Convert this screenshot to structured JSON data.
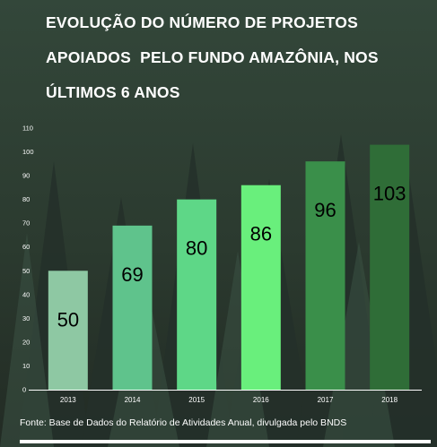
{
  "title_lines": [
    "EVOLUÇÃO DO NÚMERO DE PROJETOS",
    "APOIADOS  PELO FUNDO AMAZÔNIA, NOS",
    "ÚLTIMOS 6 ANOS"
  ],
  "source": "Fonte: Base de Dados do Relatório de Atividades Anual, divulgada pelo BNDS",
  "chart_data": {
    "type": "bar",
    "title": "EVOLUÇÃO DO NÚMERO DE PROJETOS APOIADOS  PELO FUNDO AMAZÔNIA, NOS ÚLTIMOS 6 ANOS",
    "xlabel": "",
    "ylabel": "",
    "categories": [
      "2013",
      "2014",
      "2015",
      "2016",
      "2017",
      "2018"
    ],
    "values": [
      50,
      69,
      80,
      86,
      96,
      103
    ],
    "data_labels": [
      "50",
      "69",
      "80",
      "86",
      "96",
      "103"
    ],
    "y_ticks": [
      "0",
      "10",
      "20",
      "30",
      "40",
      "50",
      "60",
      "70",
      "80",
      "90",
      "100",
      "110"
    ],
    "ylim": [
      0,
      110
    ],
    "grid": false,
    "legend": "none",
    "bar_colors": [
      "#8ec8a3",
      "#5fc38c",
      "#5ed787",
      "#69ef7c",
      "#3a8f4a",
      "#2f6d37"
    ]
  }
}
